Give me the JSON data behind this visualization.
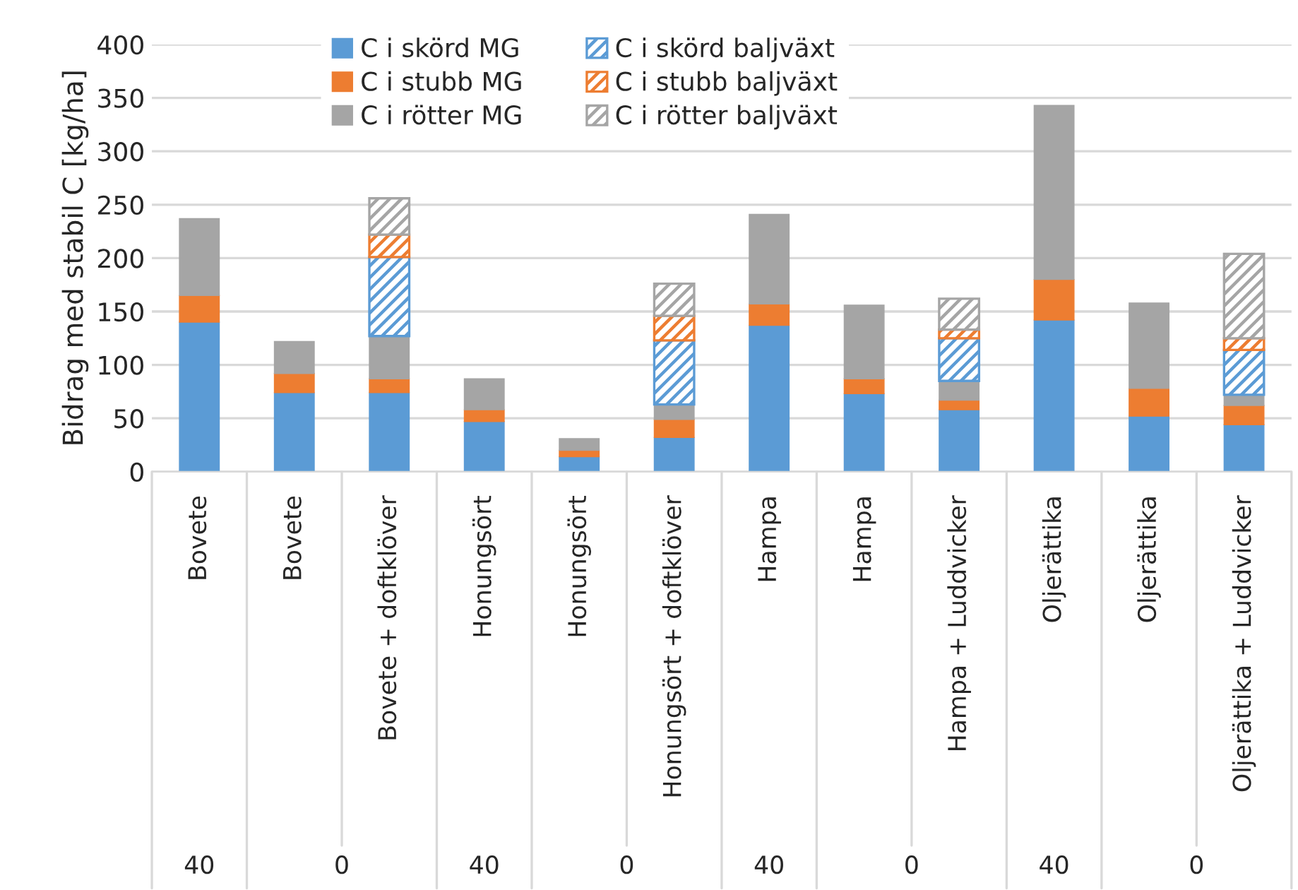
{
  "chart_data": {
    "type": "bar",
    "stacked": true,
    "ylabel": "Bidrag med stabil C [kg/ha]",
    "categories": [
      "Bovete",
      "Bovete",
      "Bovete + doftklöver",
      "Honungsört",
      "Honungsört",
      "Honungsört + doftklöver",
      "Hampa",
      "Hampa",
      "Hampa + Luddvicker",
      "Oljerättika",
      "Oljerättika",
      "Oljerättika + Luddvicker"
    ],
    "series": [
      {
        "name": "C i skörd MG",
        "color": "#5b9bd5",
        "values": [
          140,
          74,
          74,
          47,
          14,
          32,
          137,
          73,
          58,
          142,
          52,
          44
        ]
      },
      {
        "name": "C i stubb MG",
        "color": "#ed7d31",
        "values": [
          25,
          18,
          13,
          11,
          6,
          17,
          20,
          14,
          9,
          38,
          26,
          18
        ]
      },
      {
        "name": "C i rötter MG",
        "color": "#a5a5a5",
        "values": [
          72,
          30,
          40,
          29,
          11,
          14,
          84,
          69,
          18,
          163,
          80,
          10
        ]
      },
      {
        "name": "C i skörd baljväxt",
        "color": "#5b9bd5",
        "values": [
          null,
          null,
          74,
          null,
          null,
          60,
          null,
          null,
          40,
          null,
          null,
          42
        ]
      },
      {
        "name": "C i stubb baljväxt",
        "color": "#ed7d31",
        "values": [
          null,
          null,
          21,
          null,
          null,
          23,
          null,
          null,
          8,
          null,
          null,
          11
        ]
      },
      {
        "name": "C i rötter baljväxt",
        "color": "#a5a5a5",
        "values": [
          null,
          null,
          34,
          null,
          null,
          30,
          null,
          null,
          29,
          null,
          null,
          79
        ]
      }
    ],
    "annotations": [
      "40",
      "0",
      "40",
      "0",
      "40",
      "0",
      "40",
      "0"
    ],
    "ylim": [
      0,
      400
    ],
    "yticks": [
      0,
      50,
      100,
      150,
      200,
      250,
      300,
      350,
      400
    ],
    "grid": "y",
    "legend": "top"
  }
}
